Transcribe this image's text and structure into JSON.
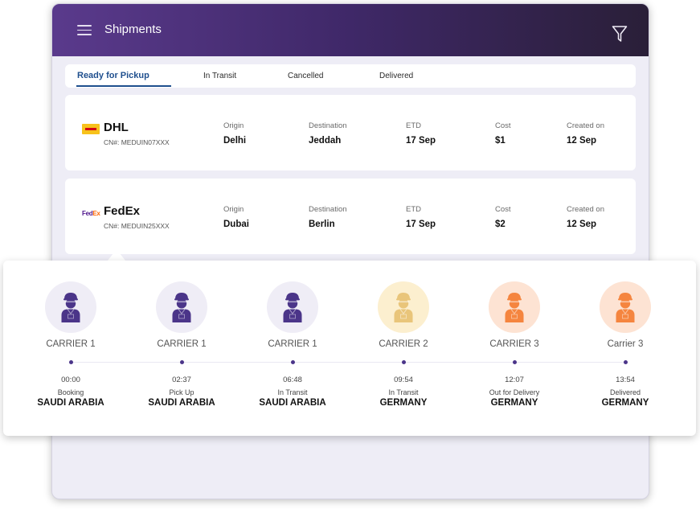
{
  "header": {
    "title": "Shipments",
    "menu_icon": "hamburger-icon",
    "filter_icon": "filter-icon"
  },
  "tabs": [
    {
      "label": "Ready for Pickup",
      "active": true
    },
    {
      "label": "In Transit",
      "active": false
    },
    {
      "label": "Cancelled",
      "active": false
    },
    {
      "label": "Delivered",
      "active": false
    }
  ],
  "field_labels": {
    "origin": "Origin",
    "destination": "Destination",
    "etd": "ETD",
    "cost": "Cost",
    "created": "Created on"
  },
  "shipments": [
    {
      "carrier": "DHL",
      "logo": "dhl-logo",
      "cn": "CN#: MEDUIN07XXX",
      "origin": "Delhi",
      "destination": "Jeddah",
      "etd": "17 Sep",
      "cost": "$1",
      "created": "12 Sep"
    },
    {
      "carrier": "FedEx",
      "logo": "fedex-logo",
      "logo_text_a": "Fed",
      "logo_text_b": "Ex",
      "cn": "CN#: MEDUIN25XXX",
      "origin": "Dubai",
      "destination": "Berlin",
      "etd": "17 Sep",
      "cost": "$2",
      "created": "12 Sep"
    }
  ],
  "timeline": [
    {
      "carrier": "CARRIER 1",
      "time": "00:00",
      "status": "Booking",
      "country": "SAUDI ARABIA",
      "bg": "#efedf6",
      "fg": "#4b3589"
    },
    {
      "carrier": "CARRIER 1",
      "time": "02:37",
      "status": "Pick Up",
      "country": "SAUDI ARABIA",
      "bg": "#efedf6",
      "fg": "#4b3589"
    },
    {
      "carrier": "CARRIER 1",
      "time": "06:48",
      "status": "In Transit",
      "country": "SAUDI ARABIA",
      "bg": "#efedf6",
      "fg": "#4b3589"
    },
    {
      "carrier": "CARRIER 2",
      "time": "09:54",
      "status": "In Transit",
      "country": "GERMANY",
      "bg": "#fcefcf",
      "fg": "#e9c57a"
    },
    {
      "carrier": "CARRIER 3",
      "time": "12:07",
      "status": "Out for Delivery",
      "country": "GERMANY",
      "bg": "#fde3d3",
      "fg": "#f5853f"
    },
    {
      "carrier": "Carrier 3",
      "time": "13:54",
      "status": "Delivered",
      "country": "GERMANY",
      "bg": "#fde3d3",
      "fg": "#f5853f"
    }
  ],
  "colors": {
    "accent": "#1f4f8e",
    "header_start": "#5a3a8c",
    "header_end": "#2a1f38",
    "timeline_dot": "#4b3589"
  }
}
